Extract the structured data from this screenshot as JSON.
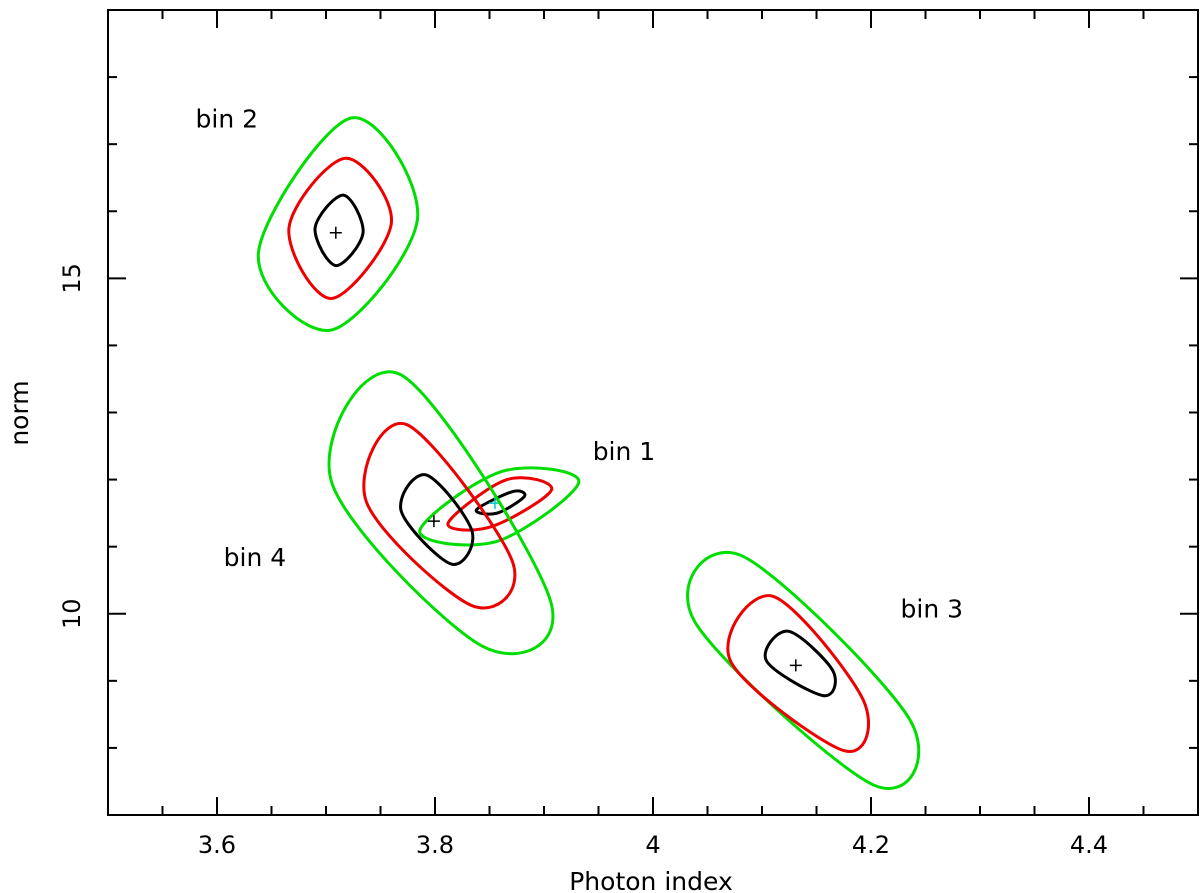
{
  "chart_data": {
    "type": "contour",
    "xlabel": "Photon index",
    "ylabel": "norm",
    "xlim": [
      3.5,
      4.5
    ],
    "ylim": [
      7,
      19
    ],
    "xticks": [
      3.6,
      3.8,
      4,
      4.2,
      4.4
    ],
    "yticks": [
      10,
      15
    ],
    "xminorticks": [
      3.55,
      3.65,
      3.7,
      3.75,
      3.85,
      3.9,
      3.95,
      4.05,
      4.1,
      4.15,
      4.25,
      4.3,
      4.35,
      4.45
    ],
    "yminorticks": [
      8,
      9,
      11,
      12,
      13,
      14,
      16,
      17,
      18
    ],
    "groups": [
      {
        "name": "bin 1",
        "center": [
          3.855,
          11.65
        ],
        "center_color": "#00c8c8",
        "contours": [
          {
            "color": "#00dd00",
            "x": [
              3.786,
              3.861,
              3.932,
              3.857
            ],
            "y": [
              11.23,
              12.12,
              11.97,
              11.08
            ]
          },
          {
            "color": "#ee0000",
            "x": [
              3.812,
              3.866,
              3.907,
              3.852
            ],
            "y": [
              11.35,
              12.0,
              11.85,
              11.3
            ]
          },
          {
            "color": "#000000",
            "x": [
              3.838,
              3.871,
              3.882,
              3.857
            ],
            "y": [
              11.55,
              11.82,
              11.75,
              11.5
            ]
          }
        ]
      },
      {
        "name": "bin 2",
        "center": [
          3.709,
          15.68
        ],
        "center_color": "#000000",
        "contours": [
          {
            "color": "#00dd00",
            "x": [
              3.638,
              3.723,
              3.784,
              3.705
            ],
            "y": [
              15.38,
              17.39,
              15.9,
              14.23
            ]
          },
          {
            "color": "#ee0000",
            "x": [
              3.666,
              3.718,
              3.76,
              3.705
            ],
            "y": [
              15.75,
              16.79,
              15.83,
              14.7
            ]
          },
          {
            "color": "#000000",
            "x": [
              3.69,
              3.716,
              3.734,
              3.709
            ],
            "y": [
              15.75,
              16.24,
              15.68,
              15.19
            ]
          }
        ]
      },
      {
        "name": "bin 3",
        "center": [
          4.131,
          9.23
        ],
        "center_color": "#000000",
        "contours": [
          {
            "color": "#00dd00",
            "x": [
              4.038,
              4.082,
              4.236,
              4.202
            ],
            "y": [
              9.89,
              10.86,
              8.41,
              7.45
            ]
          },
          {
            "color": "#ee0000",
            "x": [
              4.071,
              4.11,
              4.193,
              4.175
            ],
            "y": [
              9.3,
              10.26,
              8.71,
              7.96
            ]
          },
          {
            "color": "#000000",
            "x": [
              4.104,
              4.124,
              4.165,
              4.156
            ],
            "y": [
              9.3,
              9.74,
              9.15,
              8.78
            ]
          }
        ]
      },
      {
        "name": "bin 4",
        "center": [
          3.799,
          11.38
        ],
        "center_color": "#000000",
        "contours": [
          {
            "color": "#00dd00",
            "x": [
              3.705,
              3.769,
              3.906,
              3.843
            ],
            "y": [
              11.97,
              13.56,
              10.19,
              9.52
            ]
          },
          {
            "color": "#ee0000",
            "x": [
              3.737,
              3.774,
              3.871,
              3.834
            ],
            "y": [
              11.67,
              12.82,
              10.78,
              10.12
            ]
          },
          {
            "color": "#000000",
            "x": [
              3.769,
              3.792,
              3.834,
              3.815
            ],
            "y": [
              11.53,
              12.07,
              11.23,
              10.74
            ]
          }
        ]
      }
    ]
  }
}
